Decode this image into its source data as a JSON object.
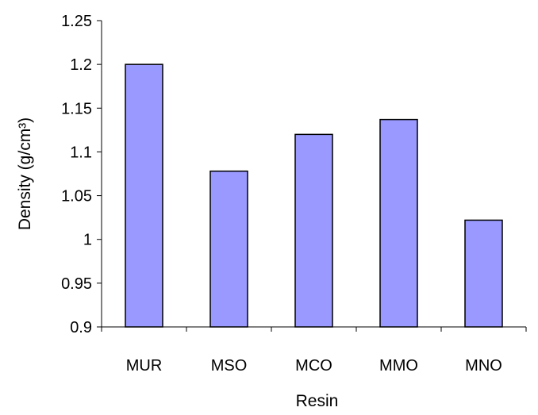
{
  "chart_data": {
    "type": "bar",
    "categories": [
      "MUR",
      "MSO",
      "MCO",
      "MMO",
      "MNO"
    ],
    "values": [
      1.2,
      1.078,
      1.12,
      1.137,
      1.022
    ],
    "xlabel": "Resin",
    "ylabel": "Density (g/cm³)",
    "ylim": [
      0.9,
      1.25
    ],
    "yticks": [
      "0.9",
      "0.95",
      "1",
      "1.05",
      "1.1",
      "1.15",
      "1.2",
      "1.25"
    ],
    "grid": false,
    "legend": "none",
    "bar_color": "#9999ff",
    "bar_edge_color": "#000000"
  }
}
